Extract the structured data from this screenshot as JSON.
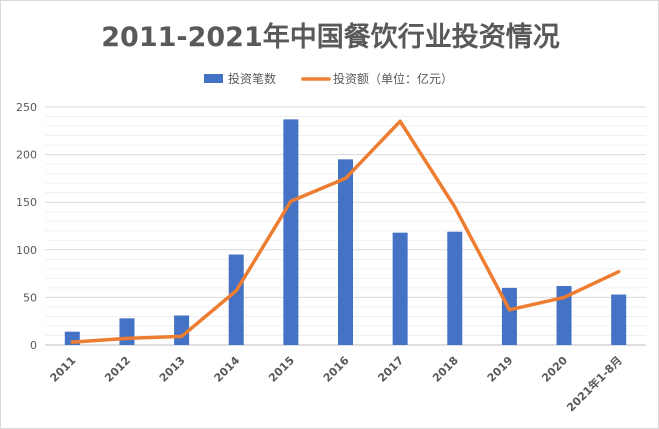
{
  "chart_data": {
    "type": "bar",
    "title": "2011-2021年中国餐饮行业投资情况",
    "categories": [
      "2011",
      "2012",
      "2013",
      "2014",
      "2015",
      "2016",
      "2017",
      "2018",
      "2019",
      "2020",
      "2021年1-8月"
    ],
    "series": [
      {
        "name": "投资笔数",
        "type": "bar",
        "color": "#4472c4",
        "values": [
          14,
          28,
          31,
          95,
          237,
          195,
          118,
          119,
          60,
          62,
          53
        ]
      },
      {
        "name": "投资额（单位：亿元）",
        "type": "line",
        "color": "#ed7d31",
        "values": [
          3,
          7,
          9,
          57,
          151,
          175,
          235,
          145,
          37,
          50,
          77
        ]
      }
    ],
    "yticks": [
      "0",
      "50",
      "100",
      "150",
      "200",
      "250"
    ],
    "ylim": [
      0,
      250
    ],
    "xlabel": "",
    "ylabel": "",
    "grid": true,
    "legend_position": "top-center"
  }
}
